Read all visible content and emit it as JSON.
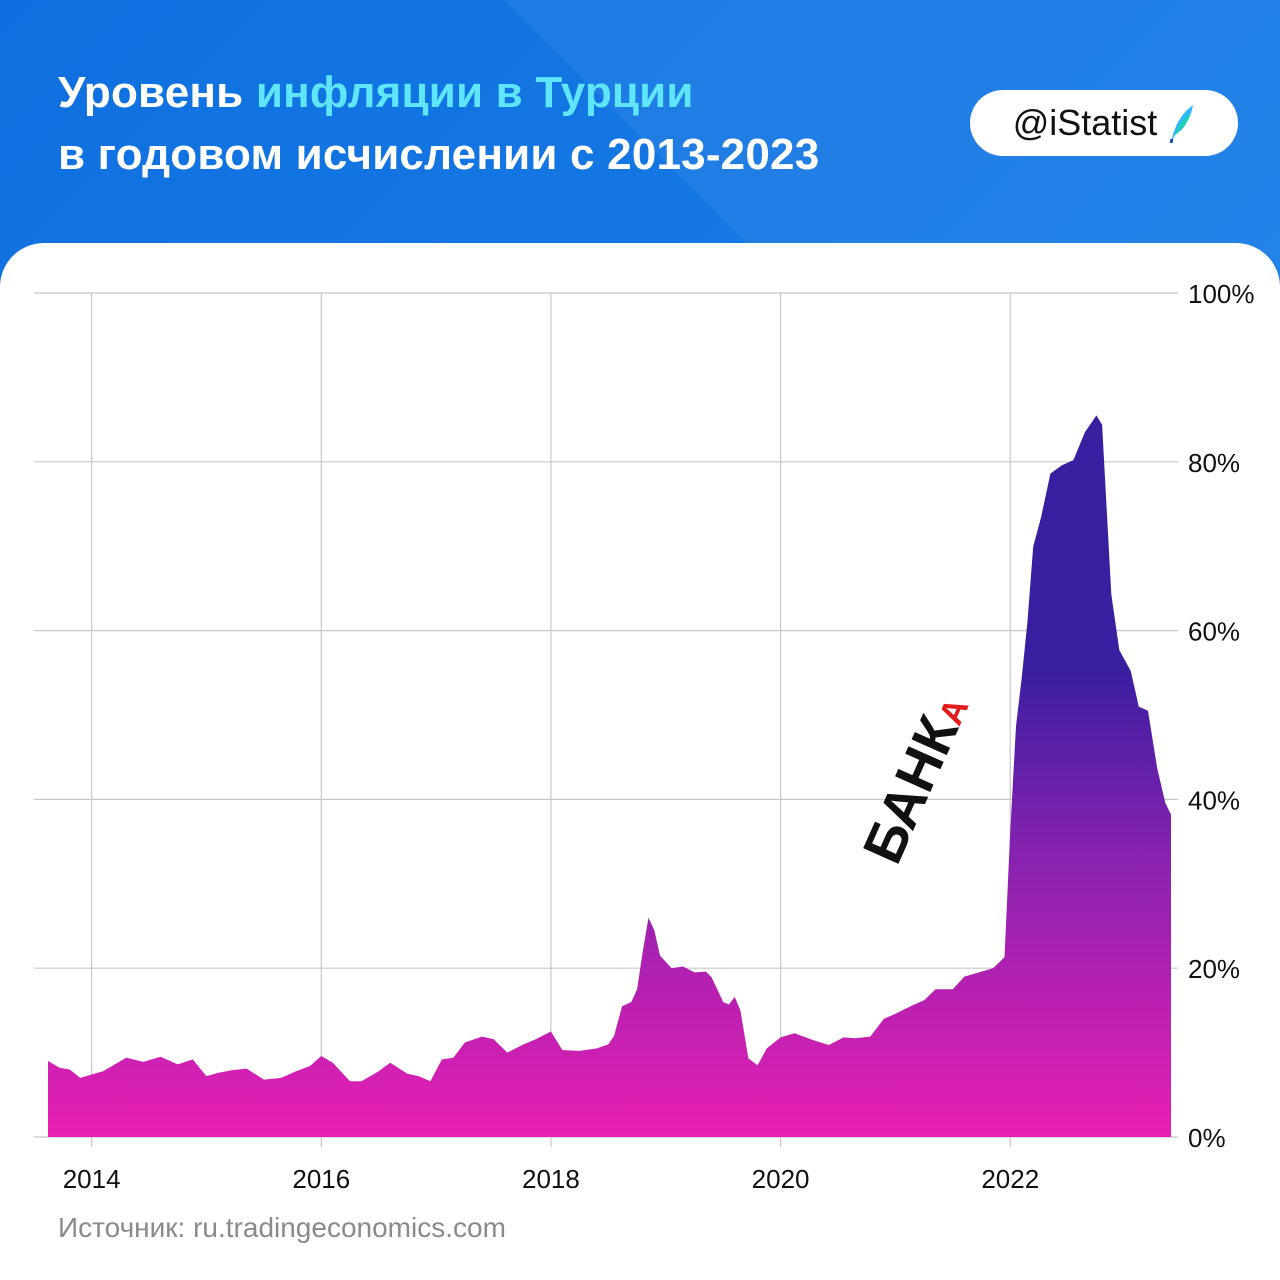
{
  "header": {
    "title_part1": "Уровень ",
    "title_highlight": "инфляции в Турции",
    "title_line2": "в годовом исчислении с 2013-2023",
    "handle": "@iStatist",
    "logo_icon": "feather-logo-icon",
    "colors": {
      "background": "#1a7fe6",
      "highlight": "#5fe6ff"
    }
  },
  "watermark": {
    "prefix": "БАНК",
    "suffix": "А"
  },
  "source": "Источник: ru.tradingeconomics.com",
  "chart_data": {
    "type": "area",
    "title": "",
    "xlabel": "",
    "ylabel": "",
    "xlim": [
      2013.5,
      2023.5
    ],
    "ylim": [
      0,
      100
    ],
    "x_ticks": [
      2014,
      2016,
      2018,
      2020,
      2022
    ],
    "x_tick_labels": [
      "2014",
      "2016",
      "2018",
      "2020",
      "2022"
    ],
    "y_ticks": [
      0,
      20,
      40,
      60,
      80,
      100
    ],
    "y_tick_labels": [
      "0%",
      "20%",
      "40%",
      "60%",
      "80%",
      "100%"
    ],
    "y_axis_side": "right",
    "grid": true,
    "colors": {
      "top": "#3a1ea0",
      "middle": "#8a22b0",
      "bottom": "#e81fb2"
    },
    "series": [
      {
        "values": [
          [
            2013.62,
            9.0
          ],
          [
            2013.72,
            8.2
          ],
          [
            2013.81,
            8.0
          ],
          [
            2013.9,
            7.0
          ],
          [
            2014.0,
            7.4
          ],
          [
            2014.1,
            7.8
          ],
          [
            2014.3,
            9.4
          ],
          [
            2014.45,
            8.9
          ],
          [
            2014.6,
            9.5
          ],
          [
            2014.75,
            8.6
          ],
          [
            2014.88,
            9.2
          ],
          [
            2015.0,
            7.2
          ],
          [
            2015.1,
            7.6
          ],
          [
            2015.22,
            7.9
          ],
          [
            2015.35,
            8.1
          ],
          [
            2015.5,
            6.8
          ],
          [
            2015.65,
            7.0
          ],
          [
            2015.78,
            7.8
          ],
          [
            2015.9,
            8.4
          ],
          [
            2016.0,
            9.6
          ],
          [
            2016.1,
            8.8
          ],
          [
            2016.25,
            6.6
          ],
          [
            2016.35,
            6.6
          ],
          [
            2016.5,
            7.8
          ],
          [
            2016.6,
            8.8
          ],
          [
            2016.75,
            7.5
          ],
          [
            2016.85,
            7.2
          ],
          [
            2016.95,
            6.6
          ],
          [
            2017.05,
            9.2
          ],
          [
            2017.15,
            9.4
          ],
          [
            2017.25,
            11.2
          ],
          [
            2017.4,
            11.9
          ],
          [
            2017.5,
            11.6
          ],
          [
            2017.62,
            10.0
          ],
          [
            2017.75,
            10.9
          ],
          [
            2017.87,
            11.6
          ],
          [
            2018.0,
            12.5
          ],
          [
            2018.1,
            10.3
          ],
          [
            2018.25,
            10.2
          ],
          [
            2018.4,
            10.5
          ],
          [
            2018.5,
            11.0
          ],
          [
            2018.55,
            12.0
          ],
          [
            2018.62,
            15.5
          ],
          [
            2018.7,
            16.0
          ],
          [
            2018.75,
            17.5
          ],
          [
            2018.8,
            22.0
          ],
          [
            2018.85,
            26.0
          ],
          [
            2018.9,
            24.5
          ],
          [
            2018.95,
            21.5
          ],
          [
            2019.05,
            20.0
          ],
          [
            2019.15,
            20.2
          ],
          [
            2019.25,
            19.5
          ],
          [
            2019.35,
            19.6
          ],
          [
            2019.4,
            18.9
          ],
          [
            2019.5,
            16.0
          ],
          [
            2019.55,
            15.7
          ],
          [
            2019.6,
            16.6
          ],
          [
            2019.65,
            15.0
          ],
          [
            2019.72,
            9.3
          ],
          [
            2019.8,
            8.5
          ],
          [
            2019.88,
            10.5
          ],
          [
            2020.0,
            11.8
          ],
          [
            2020.12,
            12.3
          ],
          [
            2020.3,
            11.4
          ],
          [
            2020.42,
            10.9
          ],
          [
            2020.55,
            11.8
          ],
          [
            2020.65,
            11.7
          ],
          [
            2020.78,
            11.9
          ],
          [
            2020.9,
            14.0
          ],
          [
            2021.0,
            14.6
          ],
          [
            2021.15,
            15.6
          ],
          [
            2021.25,
            16.2
          ],
          [
            2021.35,
            17.5
          ],
          [
            2021.5,
            17.5
          ],
          [
            2021.6,
            19.0
          ],
          [
            2021.75,
            19.6
          ],
          [
            2021.85,
            20.0
          ],
          [
            2021.95,
            21.3
          ],
          [
            2022.0,
            36.1
          ],
          [
            2022.05,
            48.7
          ],
          [
            2022.1,
            54.4
          ],
          [
            2022.15,
            61.1
          ],
          [
            2022.2,
            69.97
          ],
          [
            2022.27,
            73.5
          ],
          [
            2022.35,
            78.6
          ],
          [
            2022.45,
            79.6
          ],
          [
            2022.55,
            80.2
          ],
          [
            2022.65,
            83.5
          ],
          [
            2022.75,
            85.5
          ],
          [
            2022.8,
            84.4
          ],
          [
            2022.88,
            64.3
          ],
          [
            2022.95,
            57.7
          ],
          [
            2023.05,
            55.2
          ],
          [
            2023.12,
            51.0
          ],
          [
            2023.2,
            50.5
          ],
          [
            2023.28,
            43.7
          ],
          [
            2023.35,
            39.6
          ],
          [
            2023.4,
            38.2
          ]
        ]
      }
    ]
  }
}
